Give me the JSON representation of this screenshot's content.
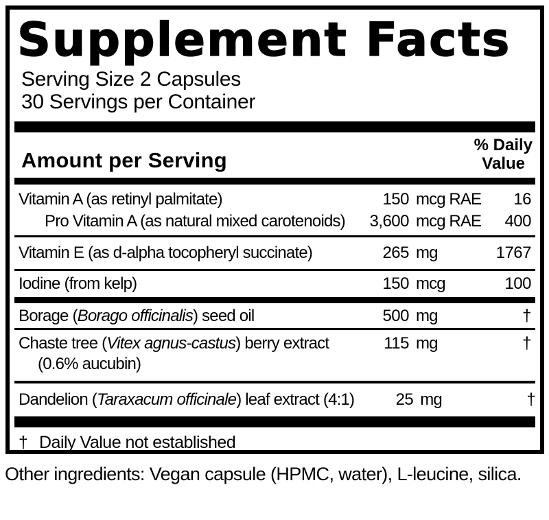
{
  "panel": {
    "title": "Supplement Facts",
    "serving_size": "Serving Size 2 Capsules",
    "servings_per_container": "30 Servings per Container",
    "amount_header": "Amount per Serving",
    "dv_header_line1": "% Daily",
    "dv_header_line2": "Value",
    "footnote_symbol": "†",
    "footnote_text": "Daily Value not established"
  },
  "rows": [
    {
      "pre": "Vitamin A (as retinyl palmitate)",
      "italic": "",
      "post": "",
      "amount": "150",
      "unit": "mcg RAE",
      "dv": "16"
    },
    {
      "pre": "Pro Vitamin A (as natural mixed carotenoids)",
      "italic": "",
      "post": "",
      "amount": "3,600",
      "unit": "mcg RAE",
      "dv": "400"
    },
    {
      "pre": "Vitamin E (as d-alpha tocopheryl succinate)",
      "italic": "",
      "post": "",
      "amount": "265",
      "unit": "mg",
      "dv": "1767"
    },
    {
      "pre": "Iodine (from kelp)",
      "italic": "",
      "post": "",
      "amount": "150",
      "unit": "mcg",
      "dv": "100"
    },
    {
      "pre": "Borage (",
      "italic": "Borago officinalis",
      "post": ") seed oil",
      "amount": "500",
      "unit": "mg",
      "dv": "†"
    },
    {
      "pre": "Chaste tree (",
      "italic": "Vitex agnus-castus",
      "post": ") berry extract",
      "sub": "(0.6% aucubin)",
      "amount": "115",
      "unit": "mg",
      "dv": "†"
    },
    {
      "pre": "Dandelion (",
      "italic": "Taraxacum officinale",
      "post": ") leaf extract (4:1)",
      "amount": "25",
      "unit": "mg",
      "dv": "†"
    }
  ],
  "other_ingredients": "Other ingredients: Vegan capsule (HPMC, water), L-leucine, silica.",
  "colors": {
    "ink": "#000000",
    "background": "#ffffff"
  }
}
